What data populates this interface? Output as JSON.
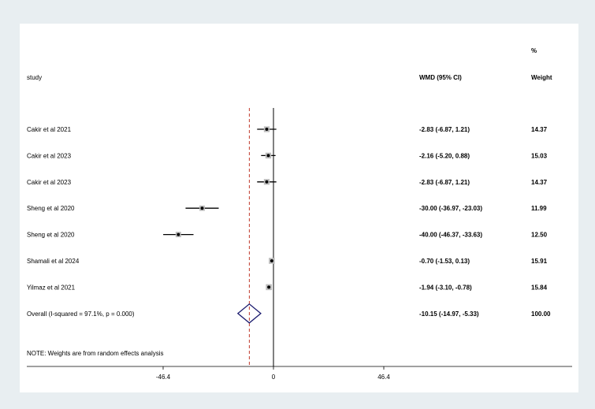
{
  "header": {
    "study_label": "study",
    "effect_label": "WMD (95% CI)",
    "weight_percent_label": "%",
    "weight_label": "Weight"
  },
  "note": "NOTE: Weights are from random effects analysis",
  "colors": {
    "page_background": "#e8eef1",
    "plot_background": "#ffffff",
    "diamond": "#1a1a6e",
    "overall_line": "#c0392b",
    "lines": "#000000"
  },
  "chart_data": {
    "type": "forest",
    "effect_measure": "WMD",
    "x_ticks": [
      "-46.4",
      "0",
      "46.4"
    ],
    "x_tick_values": [
      -46.4,
      0,
      46.4
    ],
    "xlim": [
      -69,
      95
    ],
    "null_line_value": 0,
    "studies": [
      {
        "label": "Cakir et al 2021",
        "estimate": -2.83,
        "lower": -6.87,
        "upper": 1.21,
        "ci_text": "-2.83 (-6.87, 1.21)",
        "weight": 14.37,
        "weight_text": "14.37"
      },
      {
        "label": "Cakir et al 2023",
        "estimate": -2.16,
        "lower": -5.2,
        "upper": 0.88,
        "ci_text": "-2.16 (-5.20, 0.88)",
        "weight": 15.03,
        "weight_text": "15.03"
      },
      {
        "label": "Cakir et al 2023",
        "estimate": -2.83,
        "lower": -6.87,
        "upper": 1.21,
        "ci_text": "-2.83 (-6.87, 1.21)",
        "weight": 14.37,
        "weight_text": "14.37"
      },
      {
        "label": "Sheng et al 2020",
        "estimate": -30.0,
        "lower": -36.97,
        "upper": -23.03,
        "ci_text": "-30.00 (-36.97, -23.03)",
        "weight": 11.99,
        "weight_text": "11.99"
      },
      {
        "label": "Sheng et al 2020",
        "estimate": -40.0,
        "lower": -46.37,
        "upper": -33.63,
        "ci_text": "-40.00 (-46.37, -33.63)",
        "weight": 12.5,
        "weight_text": "12.50"
      },
      {
        "label": "Shamali et al 2024",
        "estimate": -0.7,
        "lower": -1.53,
        "upper": 0.13,
        "ci_text": "-0.70 (-1.53, 0.13)",
        "weight": 15.91,
        "weight_text": "15.91"
      },
      {
        "label": "Yilmaz et al 2021",
        "estimate": -1.94,
        "lower": -3.1,
        "upper": -0.78,
        "ci_text": "-1.94 (-3.10, -0.78)",
        "weight": 15.84,
        "weight_text": "15.84"
      }
    ],
    "overall": {
      "label": "Overall  (I-squared = 97.1%, p = 0.000)",
      "estimate": -10.15,
      "lower": -14.97,
      "upper": -5.33,
      "ci_text": "-10.15 (-14.97, -5.33)",
      "weight": 100.0,
      "weight_text": "100.00"
    }
  }
}
